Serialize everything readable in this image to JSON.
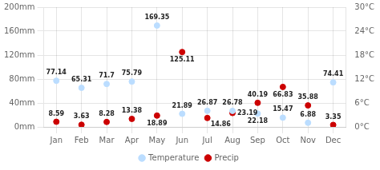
{
  "chart_data": {
    "type": "scatter",
    "categories": [
      "Jan",
      "Feb",
      "Mar",
      "Apr",
      "May",
      "Jun",
      "Jul",
      "Aug",
      "Sep",
      "Oct",
      "Nov",
      "Dec"
    ],
    "series": [
      {
        "name": "Temperature",
        "color": "#bbddff",
        "values": [
          77.14,
          65.31,
          71.7,
          75.79,
          169.35,
          21.89,
          26.87,
          26.78,
          22.18,
          15.47,
          6.88,
          74.41
        ]
      },
      {
        "name": "Precip",
        "color": "#cc0000",
        "values": [
          8.59,
          3.63,
          8.28,
          13.38,
          18.89,
          125.11,
          14.86,
          23.19,
          40.19,
          66.83,
          35.88,
          3.35
        ]
      }
    ],
    "ylim": [
      0,
      200
    ],
    "yticks": [
      {
        "value": 0,
        "label": "0mm"
      },
      {
        "value": 40,
        "label": "40mm"
      },
      {
        "value": 80,
        "label": "80mm"
      },
      {
        "value": 120,
        "label": "120mm"
      },
      {
        "value": 160,
        "label": "160mm"
      },
      {
        "value": 200,
        "label": "200mm"
      }
    ],
    "y2lim": [
      0,
      30
    ],
    "y2ticks": [
      {
        "value": 0,
        "label": "0°C"
      },
      {
        "value": 6,
        "label": "6°C"
      },
      {
        "value": 12,
        "label": "12°C"
      },
      {
        "value": 18,
        "label": "18°C"
      },
      {
        "value": 24,
        "label": "24°C"
      },
      {
        "value": 30,
        "label": "30°C"
      }
    ],
    "grid": true,
    "legend": "bottom",
    "data_labels": true
  }
}
